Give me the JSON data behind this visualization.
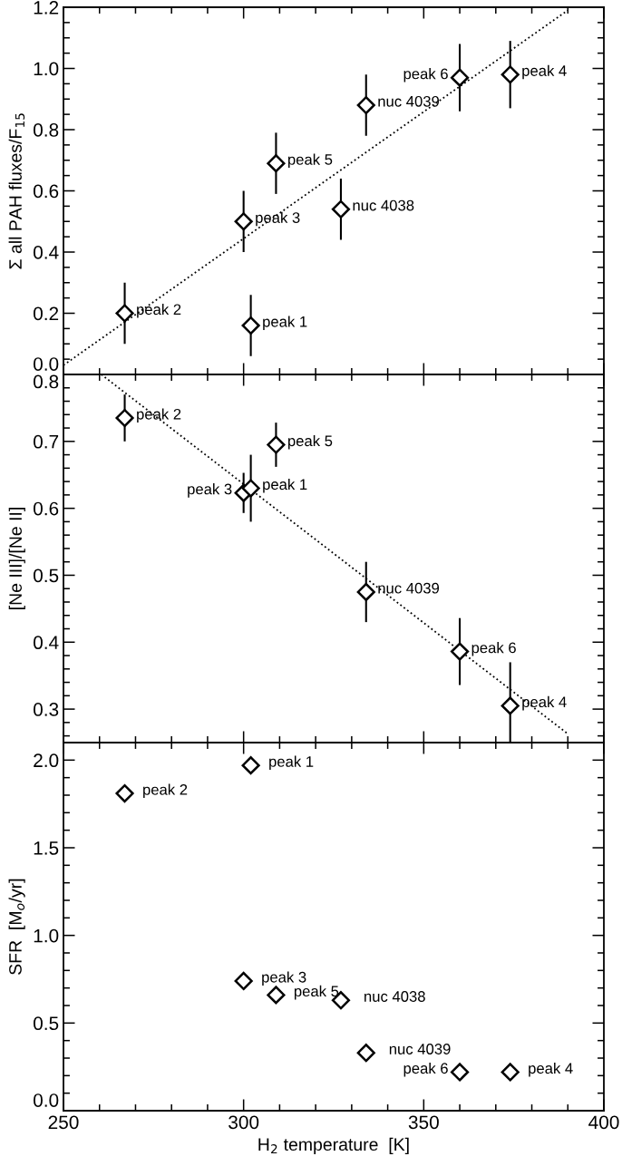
{
  "chart_data": [
    {
      "type": "scatter",
      "ylabel": "Σ all PAH fluxes/F$_{15}$",
      "xlim": [
        250,
        400
      ],
      "xticks": [
        {
          "value": 250,
          "label": null
        },
        {
          "value": 300,
          "label": null
        },
        {
          "value": 350,
          "label": null
        },
        {
          "value": 400,
          "label": null
        }
      ],
      "ylim": [
        0,
        1.2
      ],
      "yticks": [
        {
          "value": 0,
          "label": "0.0"
        },
        0.2,
        0.4,
        0.6,
        0.8,
        {
          "value": 1,
          "label": "1.0"
        },
        1.2
      ],
      "tick_labels": "y",
      "grid": false,
      "legend": false,
      "series": [
        {
          "x": [
            267,
            302,
            300,
            309,
            327,
            334,
            360,
            374
          ],
          "values": [
            0.2,
            0.16,
            0.5,
            0.69,
            0.54,
            0.88,
            0.97,
            0.98
          ],
          "errors": [
            0.1,
            0.1,
            0.1,
            0.1,
            0.1,
            0.1,
            0.11,
            0.11
          ],
          "color": "#000000",
          "marker": "diamond"
        },
        {
          "type": "line",
          "x": [
            250,
            390
          ],
          "values": [
            0.03,
            1.19
          ],
          "color": "#000000",
          "line_style": "dotted",
          "marker": "none"
        }
      ],
      "annotations": [
        {
          "text": "peak 2",
          "x": 267,
          "y": 0.2
        },
        {
          "text": "peak 1",
          "x": 302,
          "y": 0.16
        },
        {
          "text": "peak 3",
          "x": 300,
          "y": 0.5
        },
        {
          "text": "peak 5",
          "x": 309,
          "y": 0.69
        },
        {
          "text": "nuc 4038",
          "x": 327,
          "y": 0.54
        },
        {
          "text": "nuc 4039",
          "x": 334,
          "y": 0.88
        },
        {
          "text": "peak 6",
          "x": 360,
          "y": 0.97
        },
        {
          "text": "peak 4",
          "x": 374,
          "y": 0.98
        }
      ]
    },
    {
      "type": "scatter",
      "ylabel": "[Ne III]/[Ne II]",
      "xlim": [
        250,
        400
      ],
      "xticks": [
        {
          "value": 250,
          "label": null
        },
        {
          "value": 300,
          "label": null
        },
        {
          "value": 350,
          "label": null
        },
        {
          "value": 400,
          "label": null
        }
      ],
      "ylim": [
        0.25,
        0.8
      ],
      "yticks": [
        0.3,
        0.4,
        0.5,
        0.6,
        0.7,
        0.8
      ],
      "tick_labels": "y",
      "grid": false,
      "legend": false,
      "series": [
        {
          "x": [
            267,
            309,
            300,
            302,
            334,
            360,
            374
          ],
          "values": [
            0.735,
            0.695,
            0.623,
            0.63,
            0.475,
            0.386,
            0.305
          ],
          "errors": [
            0.035,
            0.033,
            0.03,
            0.05,
            0.045,
            0.05,
            [
              0.25,
              0.37
            ]
          ],
          "color": "#000000",
          "marker": "diamond"
        },
        {
          "type": "line",
          "x": [
            260.5,
            390
          ],
          "values": [
            0.8,
            0.263
          ],
          "color": "#000000",
          "line_style": "dotted",
          "marker": "none"
        }
      ],
      "annotations": [
        {
          "text": "peak 2",
          "x": 267,
          "y": 0.735
        },
        {
          "text": "peak 5",
          "x": 309,
          "y": 0.695
        },
        {
          "text": "peak 3",
          "x": 300,
          "y": 0.623
        },
        {
          "text": "peak 1",
          "x": 302,
          "y": 0.63
        },
        {
          "text": "nuc 4039",
          "x": 334,
          "y": 0.475
        },
        {
          "text": "peak 6",
          "x": 360,
          "y": 0.386
        },
        {
          "text": "peak 4",
          "x": 374,
          "y": 0.305
        }
      ]
    },
    {
      "type": "scatter",
      "xlabel": "H$_{2}$ temperature  [K]",
      "ylabel": "SFR  [M$_{o}$/yr]",
      "xlim": [
        250,
        400
      ],
      "xticks": [
        250,
        300,
        350,
        400
      ],
      "ylim": [
        0,
        2.1
      ],
      "yticks": [
        {
          "value": 0,
          "label": "0.0"
        },
        0.5,
        {
          "value": 1,
          "label": "1.0"
        },
        1.5,
        {
          "value": 2,
          "label": "2.0"
        }
      ],
      "grid": false,
      "legend": false,
      "series": [
        {
          "x": [
            267,
            302,
            300,
            309,
            327,
            334,
            360,
            374
          ],
          "values": [
            1.81,
            1.97,
            0.74,
            0.66,
            0.63,
            0.33,
            0.22,
            0.22
          ],
          "color": "#000000",
          "marker": "diamond"
        }
      ],
      "annotations": [
        {
          "text": "peak 2",
          "x": 267,
          "y": 1.81
        },
        {
          "text": "peak 1",
          "x": 302,
          "y": 1.97
        },
        {
          "text": "peak 3",
          "x": 300,
          "y": 0.74
        },
        {
          "text": "peak 5",
          "x": 309,
          "y": 0.66
        },
        {
          "text": "nuc 4038",
          "x": 327,
          "y": 0.63
        },
        {
          "text": "nuc 4039",
          "x": 334,
          "y": 0.33
        },
        {
          "text": "peak 6",
          "x": 360,
          "y": 0.22
        },
        {
          "text": "peak 4",
          "x": 374,
          "y": 0.22
        }
      ]
    }
  ]
}
